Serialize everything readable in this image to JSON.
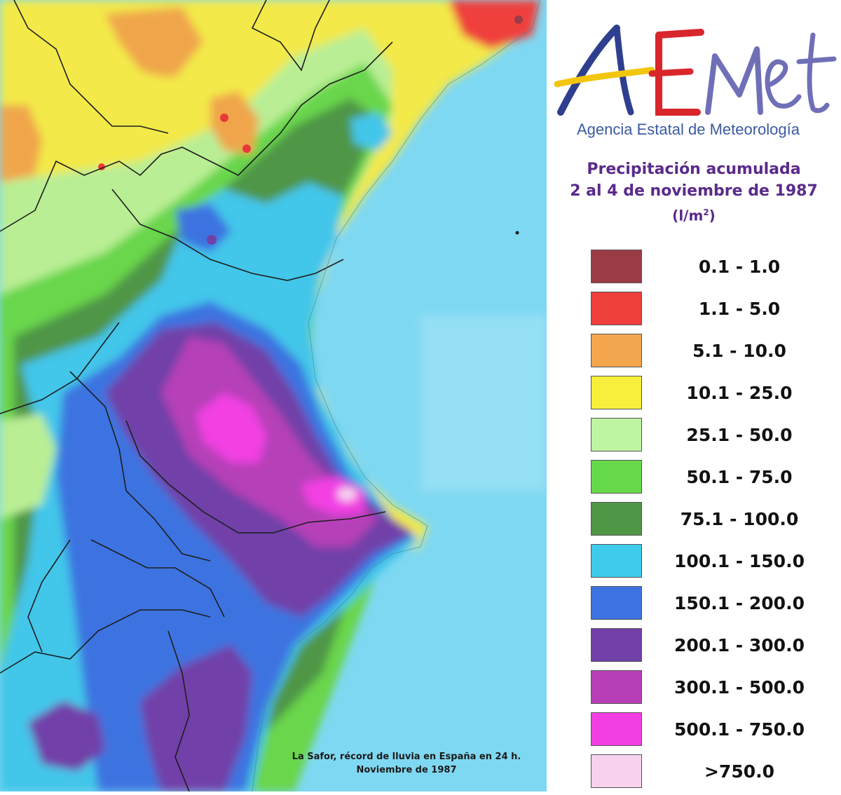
{
  "logo": {
    "text": "AEMet",
    "agency": "Agencia Estatal de Meteorología"
  },
  "title": {
    "line1": "Precipitación acumulada",
    "line2": "2 al 4 de noviembre de 1987",
    "unit_prefix": "(l/m",
    "unit_sup": "2",
    "unit_suffix": ")"
  },
  "legend": [
    {
      "label": "0.1 - 1.0",
      "color": "#9b3b45"
    },
    {
      "label": "1.1 - 5.0",
      "color": "#ef3f3d"
    },
    {
      "label": "5.1 - 10.0",
      "color": "#f3a64d"
    },
    {
      "label": "10.1 - 25.0",
      "color": "#f7ef3b"
    },
    {
      "label": "25.1 - 50.0",
      "color": "#bff4a3"
    },
    {
      "label": "50.1 - 75.0",
      "color": "#66d94a"
    },
    {
      "label": "75.1 - 100.0",
      "color": "#4f9646"
    },
    {
      "label": "100.1 - 150.0",
      "color": "#3fcbeb"
    },
    {
      "label": "150.1 - 200.0",
      "color": "#3c73e0"
    },
    {
      "label": "200.1 - 300.0",
      "color": "#7140a8"
    },
    {
      "label": "300.1 - 500.0",
      "color": "#b63fb8"
    },
    {
      "label": "500.1 - 750.0",
      "color": "#f23fe3"
    },
    {
      "label": ">750.0",
      "color": "#f7d2ee"
    }
  ],
  "caption": {
    "line1": "La Safor, récord de lluvia  en España  en 24 h.",
    "line2": "Noviembre de 1987"
  },
  "colors": {
    "sea": "#7fd8f2",
    "borders": "#1e1e1e",
    "title": "#5a2a8a",
    "agency": "#3b5aa1"
  }
}
